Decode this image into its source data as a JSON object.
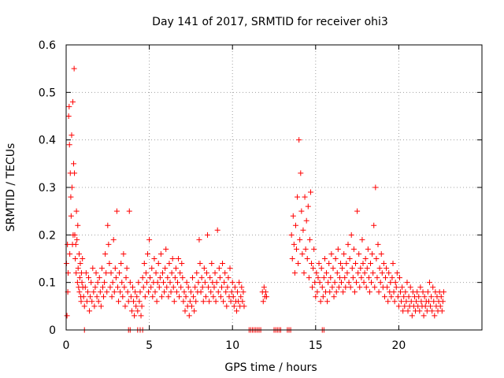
{
  "chart_data": {
    "type": "scatter",
    "title": "Day 141 of 2017, SRMTID for receiver ohi3",
    "xlabel": "GPS time / hours",
    "ylabel": "SRMTID / TECUs",
    "xlim": [
      0,
      25
    ],
    "ylim": [
      0,
      0.6
    ],
    "x_ticks": [
      0,
      5,
      10,
      15,
      20
    ],
    "y_ticks": [
      0,
      0.1,
      0.2,
      0.3,
      0.4,
      0.5,
      0.6
    ],
    "x_tick_labels": [
      "0",
      "5",
      "10",
      "15",
      "20"
    ],
    "y_tick_labels": [
      "0",
      "0.1",
      "0.2",
      "0.3",
      "0.4",
      "0.5",
      "0.6"
    ],
    "grid": true,
    "marker": "+",
    "series_color": "#ff0000",
    "series": [
      {
        "name": "SRMTID",
        "x": [
          0.02,
          0.05,
          0.08,
          0.1,
          0.12,
          0.15,
          0.18,
          0.2,
          0.22,
          0.25,
          0.28,
          0.3,
          0.33,
          0.35,
          0.38,
          0.4,
          0.42,
          0.45,
          0.48,
          0.5,
          0.52,
          0.55,
          0.58,
          0.6,
          0.62,
          0.65,
          0.68,
          0.7,
          0.72,
          0.75,
          0.78,
          0.8,
          0.82,
          0.85,
          0.88,
          0.9,
          0.92,
          0.95,
          0.98,
          1.0,
          1.05,
          1.1,
          1.15,
          1.2,
          1.25,
          1.3,
          1.35,
          1.4,
          1.45,
          1.5,
          1.55,
          1.6,
          1.65,
          1.7,
          1.75,
          1.8,
          1.85,
          1.9,
          1.95,
          2.0,
          2.05,
          2.1,
          2.15,
          2.2,
          2.25,
          2.3,
          2.35,
          2.4,
          2.45,
          2.5,
          2.55,
          2.6,
          2.65,
          2.7,
          2.75,
          2.8,
          2.85,
          2.9,
          2.95,
          3.0,
          3.05,
          3.1,
          3.15,
          3.2,
          3.25,
          3.3,
          3.35,
          3.4,
          3.45,
          3.5,
          3.55,
          3.6,
          3.65,
          3.7,
          3.75,
          3.8,
          3.85,
          3.9,
          3.95,
          4.0,
          4.05,
          4.1,
          4.15,
          4.2,
          4.25,
          4.3,
          4.35,
          4.4,
          4.45,
          4.5,
          4.55,
          4.6,
          4.65,
          4.7,
          4.75,
          4.8,
          4.85,
          4.9,
          4.95,
          5.0,
          5.05,
          5.1,
          5.15,
          5.2,
          5.25,
          5.3,
          5.35,
          5.4,
          5.45,
          5.5,
          5.55,
          5.6,
          5.65,
          5.7,
          5.75,
          5.8,
          5.85,
          5.9,
          5.95,
          6.0,
          6.05,
          6.1,
          6.15,
          6.2,
          6.25,
          6.3,
          6.35,
          6.4,
          6.45,
          6.5,
          6.55,
          6.6,
          6.65,
          6.7,
          6.75,
          6.8,
          6.85,
          6.9,
          6.95,
          7.0,
          7.05,
          7.1,
          7.15,
          7.2,
          7.25,
          7.3,
          7.35,
          7.4,
          7.45,
          7.5,
          7.55,
          7.6,
          7.65,
          7.7,
          7.75,
          7.8,
          7.85,
          7.9,
          7.95,
          8.0,
          8.05,
          8.1,
          8.15,
          8.2,
          8.25,
          8.3,
          8.35,
          8.4,
          8.45,
          8.5,
          8.55,
          8.6,
          8.65,
          8.7,
          8.75,
          8.8,
          8.85,
          8.9,
          8.95,
          9.0,
          9.05,
          9.1,
          9.15,
          9.2,
          9.25,
          9.3,
          9.35,
          9.4,
          9.45,
          9.5,
          9.55,
          9.6,
          9.65,
          9.7,
          9.75,
          9.8,
          9.85,
          9.9,
          9.95,
          10.0,
          10.05,
          10.1,
          10.15,
          10.2,
          10.25,
          10.3,
          10.35,
          10.4,
          10.45,
          10.5,
          10.55,
          10.6,
          10.65,
          10.7,
          11.8,
          11.85,
          11.9,
          11.95,
          12.0,
          12.05,
          13.55,
          13.6,
          13.65,
          13.7,
          13.75,
          13.8,
          13.85,
          13.9,
          13.95,
          14.0,
          14.05,
          14.1,
          14.15,
          14.2,
          14.25,
          14.3,
          14.35,
          14.4,
          14.45,
          14.5,
          14.55,
          14.6,
          14.65,
          14.7,
          14.75,
          14.8,
          14.85,
          14.9,
          14.95,
          15.0,
          15.05,
          15.1,
          15.15,
          15.2,
          15.25,
          15.3,
          15.35,
          15.4,
          15.45,
          15.5,
          15.55,
          15.6,
          15.65,
          15.7,
          15.75,
          15.8,
          15.85,
          15.9,
          15.95,
          16.0,
          16.05,
          16.1,
          16.15,
          16.2,
          16.25,
          16.3,
          16.35,
          16.4,
          16.45,
          16.5,
          16.55,
          16.6,
          16.65,
          16.7,
          16.75,
          16.8,
          16.85,
          16.9,
          16.95,
          17.0,
          17.05,
          17.1,
          17.15,
          17.2,
          17.25,
          17.3,
          17.35,
          17.4,
          17.45,
          17.5,
          17.55,
          17.6,
          17.65,
          17.7,
          17.75,
          17.8,
          17.85,
          17.9,
          17.95,
          18.0,
          18.05,
          18.1,
          18.15,
          18.2,
          18.25,
          18.3,
          18.35,
          18.4,
          18.45,
          18.5,
          18.55,
          18.6,
          18.65,
          18.7,
          18.75,
          18.8,
          18.85,
          18.9,
          18.95,
          19.0,
          19.05,
          19.1,
          19.15,
          19.2,
          19.25,
          19.3,
          19.35,
          19.4,
          19.45,
          19.5,
          19.55,
          19.6,
          19.65,
          19.7,
          19.75,
          19.8,
          19.85,
          19.9,
          19.95,
          20.0,
          20.05,
          20.1,
          20.15,
          20.2,
          20.25,
          20.3,
          20.35,
          20.4,
          20.45,
          20.5,
          20.55,
          20.6,
          20.65,
          20.7,
          20.75,
          20.8,
          20.85,
          20.9,
          20.95,
          21.0,
          21.05,
          21.1,
          21.15,
          21.2,
          21.25,
          21.3,
          21.35,
          21.4,
          21.45,
          21.5,
          21.55,
          21.6,
          21.65,
          21.7,
          21.75,
          21.8,
          21.85,
          21.9,
          21.95,
          22.0,
          22.05,
          22.1,
          22.15,
          22.2,
          22.25,
          22.3,
          22.35,
          22.4,
          22.45,
          22.5,
          22.55,
          22.6,
          22.65,
          22.7,
          1.1,
          3.75,
          3.85,
          4.3,
          4.45,
          4.6,
          11.0,
          11.1,
          11.2,
          11.3,
          11.4,
          11.5,
          11.6,
          11.7,
          12.5,
          12.6,
          12.7,
          12.8,
          12.9,
          13.3,
          13.4,
          13.5,
          15.4,
          15.5
        ],
        "y": [
          0.14,
          0.03,
          0.18,
          0.08,
          0.12,
          0.45,
          0.47,
          0.39,
          0.16,
          0.33,
          0.28,
          0.24,
          0.41,
          0.3,
          0.18,
          0.48,
          0.2,
          0.35,
          0.55,
          0.33,
          0.2,
          0.15,
          0.18,
          0.12,
          0.25,
          0.19,
          0.1,
          0.22,
          0.13,
          0.09,
          0.16,
          0.08,
          0.11,
          0.14,
          0.07,
          0.06,
          0.12,
          0.1,
          0.15,
          0.09,
          0.07,
          0.05,
          0.09,
          0.12,
          0.06,
          0.08,
          0.11,
          0.04,
          0.07,
          0.1,
          0.06,
          0.13,
          0.08,
          0.05,
          0.09,
          0.12,
          0.07,
          0.1,
          0.06,
          0.11,
          0.08,
          0.05,
          0.13,
          0.09,
          0.07,
          0.1,
          0.16,
          0.12,
          0.08,
          0.22,
          0.18,
          0.14,
          0.09,
          0.12,
          0.07,
          0.1,
          0.19,
          0.08,
          0.13,
          0.11,
          0.25,
          0.09,
          0.06,
          0.12,
          0.08,
          0.14,
          0.1,
          0.07,
          0.16,
          0.09,
          0.05,
          0.11,
          0.13,
          0.08,
          0.06,
          0.25,
          0.1,
          0.07,
          0.04,
          0.09,
          0.06,
          0.03,
          0.08,
          0.05,
          0.07,
          0.04,
          0.1,
          0.06,
          0.08,
          0.03,
          0.05,
          0.11,
          0.09,
          0.14,
          0.07,
          0.12,
          0.1,
          0.16,
          0.08,
          0.19,
          0.11,
          0.09,
          0.13,
          0.07,
          0.1,
          0.15,
          0.08,
          0.12,
          0.06,
          0.1,
          0.14,
          0.09,
          0.11,
          0.16,
          0.07,
          0.12,
          0.1,
          0.08,
          0.13,
          0.17,
          0.09,
          0.11,
          0.07,
          0.14,
          0.1,
          0.08,
          0.12,
          0.15,
          0.09,
          0.06,
          0.11,
          0.13,
          0.08,
          0.1,
          0.15,
          0.07,
          0.12,
          0.09,
          0.14,
          0.11,
          0.06,
          0.08,
          0.04,
          0.07,
          0.1,
          0.05,
          0.09,
          0.03,
          0.06,
          0.08,
          0.05,
          0.11,
          0.07,
          0.04,
          0.09,
          0.06,
          0.12,
          0.08,
          0.1,
          0.19,
          0.14,
          0.08,
          0.11,
          0.09,
          0.06,
          0.13,
          0.1,
          0.07,
          0.12,
          0.2,
          0.09,
          0.06,
          0.11,
          0.08,
          0.14,
          0.1,
          0.07,
          0.09,
          0.12,
          0.06,
          0.1,
          0.21,
          0.08,
          0.13,
          0.11,
          0.07,
          0.09,
          0.14,
          0.06,
          0.1,
          0.12,
          0.08,
          0.05,
          0.09,
          0.11,
          0.07,
          0.13,
          0.06,
          0.08,
          0.1,
          0.07,
          0.05,
          0.09,
          0.06,
          0.04,
          0.08,
          0.06,
          0.1,
          0.05,
          0.07,
          0.09,
          0.06,
          0.08,
          0.05,
          0.08,
          0.06,
          0.09,
          0.07,
          0.08,
          0.07,
          0.2,
          0.15,
          0.24,
          0.18,
          0.12,
          0.22,
          0.17,
          0.28,
          0.14,
          0.4,
          0.19,
          0.33,
          0.25,
          0.16,
          0.21,
          0.12,
          0.28,
          0.17,
          0.23,
          0.15,
          0.26,
          0.11,
          0.19,
          0.29,
          0.14,
          0.09,
          0.13,
          0.17,
          0.1,
          0.07,
          0.12,
          0.08,
          0.11,
          0.14,
          0.1,
          0.06,
          0.13,
          0.09,
          0.07,
          0.11,
          0.15,
          0.08,
          0.12,
          0.06,
          0.1,
          0.14,
          0.08,
          0.11,
          0.16,
          0.09,
          0.13,
          0.07,
          0.1,
          0.15,
          0.08,
          0.12,
          0.17,
          0.09,
          0.11,
          0.14,
          0.1,
          0.13,
          0.08,
          0.16,
          0.11,
          0.09,
          0.14,
          0.12,
          0.18,
          0.1,
          0.15,
          0.09,
          0.2,
          0.13,
          0.11,
          0.17,
          0.08,
          0.14,
          0.1,
          0.25,
          0.12,
          0.16,
          0.09,
          0.13,
          0.11,
          0.19,
          0.14,
          0.1,
          0.12,
          0.15,
          0.09,
          0.13,
          0.17,
          0.11,
          0.08,
          0.14,
          0.1,
          0.16,
          0.12,
          0.22,
          0.09,
          0.3,
          0.15,
          0.11,
          0.18,
          0.08,
          0.13,
          0.1,
          0.16,
          0.12,
          0.09,
          0.14,
          0.07,
          0.11,
          0.13,
          0.09,
          0.06,
          0.12,
          0.08,
          0.1,
          0.07,
          0.11,
          0.14,
          0.08,
          0.06,
          0.1,
          0.09,
          0.12,
          0.07,
          0.05,
          0.11,
          0.08,
          0.06,
          0.09,
          0.04,
          0.07,
          0.05,
          0.08,
          0.06,
          0.1,
          0.04,
          0.07,
          0.05,
          0.09,
          0.06,
          0.03,
          0.08,
          0.05,
          0.07,
          0.04,
          0.06,
          0.08,
          0.05,
          0.07,
          0.04,
          0.09,
          0.06,
          0.05,
          0.08,
          0.03,
          0.07,
          0.05,
          0.06,
          0.04,
          0.08,
          0.06,
          0.1,
          0.05,
          0.07,
          0.04,
          0.09,
          0.06,
          0.03,
          0.08,
          0.05,
          0.07,
          0.04,
          0.06,
          0.08,
          0.05,
          0.07,
          0.04,
          0.06,
          0.08,
          0,
          0,
          0,
          0,
          0,
          0,
          0,
          0,
          0,
          0,
          0,
          0,
          0,
          0,
          0,
          0,
          0,
          0,
          0,
          0,
          0,
          0,
          0,
          0
        ]
      }
    ]
  }
}
